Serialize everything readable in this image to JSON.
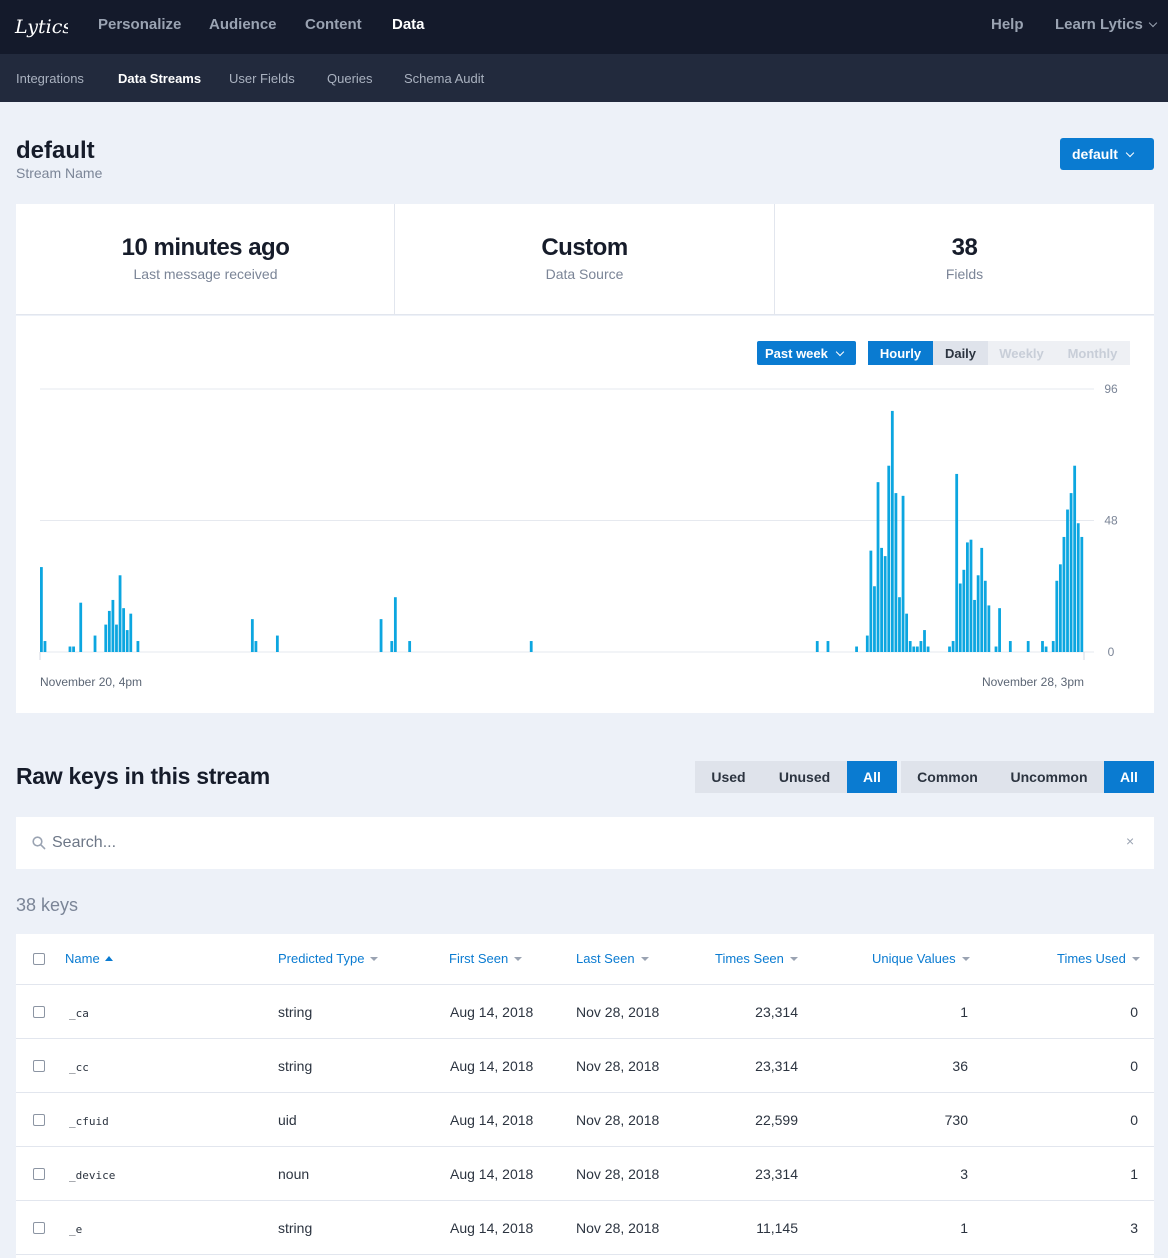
{
  "brand": {
    "logo_text": "Lytics",
    "accent": "#0a7bd1",
    "nav_bg": "#141a2b",
    "subnav_bg": "#222a3d",
    "bar_color": "#0ca6e0"
  },
  "topnav": {
    "items": [
      "Personalize",
      "Audience",
      "Content",
      "Data"
    ],
    "active": "Data",
    "help": "Help",
    "learn": "Learn Lytics"
  },
  "subnav": {
    "items": [
      "Integrations",
      "Data Streams",
      "User Fields",
      "Queries",
      "Schema Audit"
    ],
    "active": "Data Streams"
  },
  "page": {
    "title": "default",
    "subtitle": "Stream Name",
    "stream_select": "default"
  },
  "stats": [
    {
      "value": "10 minutes ago",
      "label": "Last message received"
    },
    {
      "value": "Custom",
      "label": "Data Source"
    },
    {
      "value": "38",
      "label": "Fields"
    }
  ],
  "chart_controls": {
    "range": "Past week",
    "granularity": [
      "Hourly",
      "Daily",
      "Weekly",
      "Monthly"
    ],
    "active": "Hourly"
  },
  "chart_data": {
    "type": "bar",
    "title": "",
    "x_start_label": "November 20, 4pm",
    "x_end_label": "November 28, 3pm",
    "xlabel": "",
    "ylabel": "",
    "ylim": [
      0,
      96
    ],
    "yticks": [
      0,
      48,
      96
    ],
    "grid": true,
    "values": [
      31,
      4,
      0,
      0,
      0,
      0,
      0,
      0,
      2,
      2,
      0,
      18,
      0,
      0,
      0,
      6,
      0,
      0,
      10,
      15,
      19,
      10,
      28,
      16,
      8,
      14,
      0,
      4,
      0,
      0,
      0,
      0,
      0,
      0,
      0,
      0,
      0,
      0,
      0,
      0,
      0,
      0,
      0,
      0,
      0,
      0,
      0,
      0,
      0,
      0,
      0,
      0,
      0,
      0,
      0,
      0,
      0,
      0,
      0,
      12,
      4,
      0,
      0,
      0,
      0,
      0,
      6,
      0,
      0,
      0,
      0,
      0,
      0,
      0,
      0,
      0,
      0,
      0,
      0,
      0,
      0,
      0,
      0,
      0,
      0,
      0,
      0,
      0,
      0,
      0,
      0,
      0,
      0,
      0,
      0,
      12,
      0,
      0,
      4,
      20,
      0,
      0,
      0,
      4,
      0,
      0,
      0,
      0,
      0,
      0,
      0,
      0,
      0,
      0,
      0,
      0,
      0,
      0,
      0,
      0,
      0,
      0,
      0,
      0,
      0,
      0,
      0,
      0,
      0,
      0,
      0,
      0,
      0,
      0,
      0,
      0,
      0,
      4,
      0,
      0,
      0,
      0,
      0,
      0,
      0,
      0,
      0,
      0,
      0,
      0,
      0,
      0,
      0,
      0,
      0,
      0,
      0,
      0,
      0,
      0,
      0,
      0,
      0,
      0,
      0,
      0,
      0,
      0,
      0,
      0,
      0,
      0,
      0,
      0,
      0,
      0,
      0,
      0,
      0,
      0,
      0,
      0,
      0,
      0,
      0,
      0,
      0,
      0,
      0,
      0,
      0,
      0,
      0,
      0,
      0,
      0,
      0,
      0,
      0,
      0,
      0,
      0,
      0,
      0,
      0,
      0,
      0,
      0,
      0,
      0,
      0,
      0,
      0,
      0,
      0,
      0,
      0,
      4,
      0,
      0,
      4,
      0,
      0,
      0,
      0,
      0,
      0,
      0,
      2,
      0,
      0,
      6,
      37,
      24,
      62,
      38,
      35,
      68,
      88,
      58,
      20,
      57,
      14,
      4,
      2,
      2,
      4,
      8,
      2,
      0,
      0,
      0,
      0,
      0,
      2,
      4,
      65,
      25,
      30,
      40,
      41,
      19,
      28,
      38,
      26,
      17,
      0,
      2,
      16,
      0,
      0,
      4,
      0,
      0,
      0,
      0,
      4,
      0,
      0,
      0,
      4,
      2,
      0,
      4,
      26,
      32,
      42,
      52,
      58,
      68,
      47,
      42
    ]
  },
  "raw_keys": {
    "title": "Raw keys in this stream",
    "usage_filters": [
      "Used",
      "Unused",
      "All"
    ],
    "usage_active": "All",
    "commonality_filters": [
      "Common",
      "Uncommon",
      "All"
    ],
    "commonality_active": "All",
    "search_placeholder": "Search...",
    "count_text": "38 keys"
  },
  "table": {
    "columns": [
      "Name",
      "Predicted Type",
      "First Seen",
      "Last Seen",
      "Times Seen",
      "Unique Values",
      "Times Used"
    ],
    "rows": [
      {
        "name": "_ca",
        "type": "string",
        "first": "Aug 14, 2018",
        "last": "Nov 28, 2018",
        "seen": "23,314",
        "unique": "1",
        "used": "0"
      },
      {
        "name": "_cc",
        "type": "string",
        "first": "Aug 14, 2018",
        "last": "Nov 28, 2018",
        "seen": "23,314",
        "unique": "36",
        "used": "0"
      },
      {
        "name": "_cfuid",
        "type": "uid",
        "first": "Aug 14, 2018",
        "last": "Nov 28, 2018",
        "seen": "22,599",
        "unique": "730",
        "used": "0"
      },
      {
        "name": "_device",
        "type": "noun",
        "first": "Aug 14, 2018",
        "last": "Nov 28, 2018",
        "seen": "23,314",
        "unique": "3",
        "used": "1"
      },
      {
        "name": "_e",
        "type": "string",
        "first": "Aug 14, 2018",
        "last": "Nov 28, 2018",
        "seen": "11,145",
        "unique": "1",
        "used": "3"
      }
    ]
  }
}
